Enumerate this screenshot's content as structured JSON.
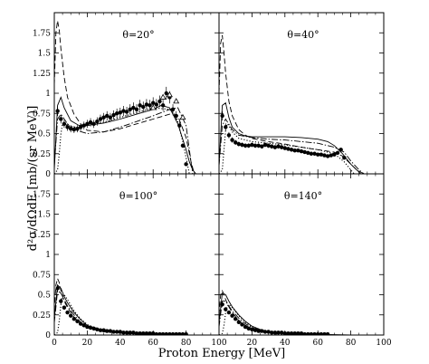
{
  "chart_data": {
    "type": "scatter",
    "layout": "2x2 panels sharing axes",
    "xlabel": "Proton Energy [MeV]",
    "ylabel": "d²σ/dΩdE [mb/(sr MeV)]",
    "xlim": [
      0,
      100
    ],
    "ylim": [
      0,
      2.0
    ],
    "x_ticks": [
      0,
      20,
      40,
      60,
      80,
      100
    ],
    "x_tick_labels": [
      "0",
      "20",
      "40",
      "60",
      "80",
      "100"
    ],
    "y_ticks": [
      0,
      0.25,
      0.5,
      0.75,
      1,
      1.25,
      1.5,
      1.75
    ],
    "y_tick_labels": [
      "0",
      "0.25",
      "0.5",
      "0.75",
      "1",
      "1.25",
      "1.5",
      "1.75"
    ],
    "grid": false,
    "panels": [
      {
        "label": "θ=20°",
        "data_points": {
          "x": [
            2,
            4,
            6,
            8,
            10,
            12,
            14,
            16,
            18,
            20,
            22,
            24,
            26,
            28,
            30,
            32,
            34,
            36,
            38,
            40,
            42,
            44,
            46,
            48,
            50,
            52,
            54,
            56,
            58,
            60,
            62,
            64,
            66,
            68,
            70,
            72,
            74,
            76,
            78,
            80
          ],
          "y": [
            0.78,
            0.68,
            0.62,
            0.58,
            0.56,
            0.55,
            0.56,
            0.58,
            0.6,
            0.62,
            0.64,
            0.62,
            0.65,
            0.68,
            0.7,
            0.72,
            0.7,
            0.73,
            0.75,
            0.76,
            0.78,
            0.77,
            0.8,
            0.82,
            0.8,
            0.85,
            0.83,
            0.86,
            0.85,
            0.88,
            0.86,
            0.9,
            0.85,
            1.0,
            0.95,
            0.8,
            0.72,
            0.6,
            0.35,
            0.12
          ]
        },
        "open_points": {
          "x": [
            60,
            66,
            70,
            74,
            78
          ],
          "y": [
            0.82,
            0.95,
            0.98,
            0.9,
            0.7
          ]
        },
        "lines": [
          {
            "style": "solid",
            "x": [
              0,
              2,
              4,
              6,
              10,
              15,
              20,
              30,
              40,
              50,
              60,
              65,
              70,
              75,
              80,
              82,
              84,
              86
            ],
            "y": [
              0.05,
              0.85,
              0.95,
              0.82,
              0.66,
              0.6,
              0.6,
              0.63,
              0.68,
              0.74,
              0.8,
              0.85,
              0.82,
              0.62,
              0.3,
              0.15,
              0.05,
              0
            ]
          },
          {
            "style": "dashed",
            "x": [
              0,
              1,
              2,
              3,
              4,
              6,
              8,
              12,
              16,
              20,
              30,
              40,
              50,
              60,
              70,
              75,
              80,
              83,
              85
            ],
            "y": [
              1.1,
              1.75,
              1.9,
              1.78,
              1.55,
              1.2,
              0.95,
              0.74,
              0.62,
              0.54,
              0.52,
              0.56,
              0.62,
              0.68,
              0.74,
              0.72,
              0.45,
              0.15,
              0
            ]
          },
          {
            "style": "dashdot",
            "x": [
              0,
              2,
              4,
              8,
              12,
              20,
              30,
              40,
              50,
              60,
              70,
              75,
              80,
              82,
              84
            ],
            "y": [
              0.1,
              0.68,
              0.74,
              0.62,
              0.55,
              0.5,
              0.52,
              0.58,
              0.65,
              0.72,
              0.8,
              0.82,
              0.6,
              0.3,
              0
            ]
          },
          {
            "style": "dotted",
            "x": [
              0,
              2,
              3,
              4,
              5,
              6,
              8,
              12,
              16,
              20,
              30,
              40,
              50,
              60,
              70,
              74,
              78,
              80,
              82
            ],
            "y": [
              0,
              0.05,
              0.25,
              0.5,
              0.62,
              0.62,
              0.6,
              0.58,
              0.58,
              0.6,
              0.64,
              0.7,
              0.76,
              0.82,
              0.8,
              0.72,
              0.4,
              0.2,
              0
            ]
          }
        ]
      },
      {
        "label": "θ=40°",
        "data_points": {
          "x": [
            2,
            4,
            6,
            8,
            10,
            12,
            14,
            16,
            18,
            20,
            22,
            24,
            26,
            28,
            30,
            32,
            34,
            36,
            38,
            40,
            42,
            44,
            46,
            48,
            50,
            52,
            54,
            56,
            58,
            60,
            62,
            64,
            66,
            68,
            70,
            72,
            74,
            76
          ],
          "y": [
            0.72,
            0.58,
            0.48,
            0.42,
            0.39,
            0.37,
            0.36,
            0.35,
            0.35,
            0.36,
            0.35,
            0.35,
            0.34,
            0.36,
            0.35,
            0.34,
            0.33,
            0.34,
            0.33,
            0.32,
            0.31,
            0.3,
            0.29,
            0.29,
            0.28,
            0.27,
            0.26,
            0.25,
            0.25,
            0.24,
            0.24,
            0.23,
            0.22,
            0.23,
            0.24,
            0.26,
            0.3,
            0.2
          ]
        },
        "open_points": {
          "x": [],
          "y": []
        },
        "lines": [
          {
            "style": "solid",
            "x": [
              0,
              2,
              4,
              6,
              8,
              12,
              16,
              20,
              30,
              40,
              50,
              60,
              66,
              70,
              75,
              80,
              84,
              88
            ],
            "y": [
              0.1,
              0.85,
              0.88,
              0.7,
              0.58,
              0.5,
              0.47,
              0.46,
              0.46,
              0.46,
              0.45,
              0.43,
              0.4,
              0.35,
              0.25,
              0.12,
              0.04,
              0
            ]
          },
          {
            "style": "dashed",
            "x": [
              0,
              1,
              2,
              3,
              4,
              6,
              8,
              12,
              16,
              20,
              30,
              40,
              50,
              60,
              70,
              75,
              80,
              84,
              86
            ],
            "y": [
              1.0,
              1.62,
              1.72,
              1.5,
              1.25,
              0.9,
              0.72,
              0.55,
              0.48,
              0.44,
              0.4,
              0.37,
              0.33,
              0.3,
              0.27,
              0.22,
              0.12,
              0.04,
              0
            ]
          },
          {
            "style": "dashdot",
            "x": [
              0,
              2,
              4,
              8,
              12,
              20,
              30,
              40,
              50,
              60,
              70,
              76,
              80,
              85,
              88
            ],
            "y": [
              0.1,
              0.6,
              0.68,
              0.55,
              0.48,
              0.45,
              0.43,
              0.42,
              0.4,
              0.38,
              0.33,
              0.27,
              0.16,
              0.05,
              0
            ]
          },
          {
            "style": "dotted",
            "x": [
              0,
              2,
              3,
              4,
              5,
              6,
              8,
              12,
              20,
              30,
              40,
              50,
              60,
              70,
              76,
              80,
              82
            ],
            "y": [
              0,
              0.05,
              0.3,
              0.55,
              0.62,
              0.6,
              0.52,
              0.44,
              0.4,
              0.38,
              0.36,
              0.33,
              0.3,
              0.25,
              0.15,
              0.05,
              0
            ]
          }
        ]
      },
      {
        "label": "θ=100°",
        "data_points": {
          "x": [
            2,
            4,
            6,
            8,
            10,
            12,
            14,
            16,
            18,
            20,
            22,
            24,
            26,
            28,
            30,
            32,
            34,
            36,
            38,
            40,
            42,
            44,
            46,
            48,
            50,
            52,
            54,
            56,
            58,
            60,
            62,
            64,
            66,
            68,
            70,
            72,
            74,
            76,
            78,
            80
          ],
          "y": [
            0.58,
            0.42,
            0.34,
            0.28,
            0.24,
            0.2,
            0.17,
            0.14,
            0.12,
            0.1,
            0.09,
            0.08,
            0.07,
            0.06,
            0.06,
            0.05,
            0.05,
            0.04,
            0.04,
            0.04,
            0.03,
            0.03,
            0.03,
            0.03,
            0.02,
            0.02,
            0.02,
            0.02,
            0.02,
            0.02,
            0.01,
            0.01,
            0.01,
            0.01,
            0.01,
            0.01,
            0.01,
            0.01,
            0.01,
            0.01
          ]
        },
        "open_points": {
          "x": [],
          "y": []
        },
        "lines": [
          {
            "style": "solid",
            "x": [
              0,
              2,
              4,
              6,
              8,
              12,
              16,
              20,
              26,
              30,
              40,
              50,
              60,
              70,
              80
            ],
            "y": [
              0.2,
              0.62,
              0.58,
              0.48,
              0.4,
              0.28,
              0.19,
              0.12,
              0.07,
              0.05,
              0.03,
              0.02,
              0.01,
              0.005,
              0
            ]
          },
          {
            "style": "dashed",
            "x": [
              0,
              1,
              2,
              3,
              4,
              6,
              8,
              12,
              16,
              20,
              26,
              30,
              40,
              50,
              60,
              70,
              80
            ],
            "y": [
              0.3,
              0.62,
              0.7,
              0.65,
              0.55,
              0.42,
              0.34,
              0.22,
              0.14,
              0.1,
              0.06,
              0.04,
              0.025,
              0.015,
              0.01,
              0.005,
              0
            ]
          },
          {
            "style": "dashdot",
            "x": [
              0,
              2,
              4,
              6,
              8,
              12,
              16,
              20,
              30,
              40,
              50,
              60,
              80
            ],
            "y": [
              0.15,
              0.55,
              0.52,
              0.44,
              0.36,
              0.25,
              0.16,
              0.1,
              0.045,
              0.025,
              0.015,
              0.01,
              0
            ]
          },
          {
            "style": "dotted",
            "x": [
              0,
              2,
              3,
              4,
              5,
              6,
              8,
              12,
              16,
              20,
              30,
              40,
              60,
              80
            ],
            "y": [
              0,
              0.03,
              0.18,
              0.38,
              0.48,
              0.5,
              0.44,
              0.3,
              0.2,
              0.13,
              0.05,
              0.025,
              0.01,
              0
            ]
          }
        ]
      },
      {
        "label": "θ=140°",
        "data_points": {
          "x": [
            2,
            4,
            6,
            8,
            10,
            12,
            14,
            16,
            18,
            20,
            22,
            24,
            26,
            28,
            30,
            32,
            34,
            36,
            38,
            40,
            42,
            44,
            46,
            48,
            50,
            52,
            54,
            56,
            58,
            60,
            62,
            64,
            66
          ],
          "y": [
            0.38,
            0.32,
            0.28,
            0.24,
            0.2,
            0.16,
            0.13,
            0.1,
            0.08,
            0.07,
            0.06,
            0.05,
            0.05,
            0.04,
            0.04,
            0.03,
            0.03,
            0.03,
            0.03,
            0.02,
            0.02,
            0.02,
            0.02,
            0.02,
            0.02,
            0.01,
            0.01,
            0.01,
            0.01,
            0.01,
            0.01,
            0.01,
            0.01
          ]
        },
        "open_points": {
          "x": [],
          "y": []
        },
        "lines": [
          {
            "style": "solid",
            "x": [
              0,
              2,
              4,
              6,
              8,
              12,
              16,
              20,
              26,
              30,
              40,
              50,
              60,
              70,
              80
            ],
            "y": [
              0.15,
              0.52,
              0.5,
              0.42,
              0.35,
              0.25,
              0.17,
              0.11,
              0.06,
              0.04,
              0.02,
              0.012,
              0.008,
              0.004,
              0
            ]
          },
          {
            "style": "dashed",
            "x": [
              0,
              1,
              2,
              3,
              4,
              6,
              8,
              12,
              16,
              20,
              26,
              30,
              40,
              50,
              60,
              70
            ],
            "y": [
              0.25,
              0.5,
              0.55,
              0.5,
              0.44,
              0.35,
              0.28,
              0.18,
              0.12,
              0.08,
              0.05,
              0.035,
              0.02,
              0.012,
              0.008,
              0
            ]
          },
          {
            "style": "dashdot",
            "x": [
              0,
              2,
              4,
              6,
              8,
              12,
              16,
              20,
              30,
              40,
              50,
              60,
              70
            ],
            "y": [
              0.1,
              0.42,
              0.42,
              0.36,
              0.3,
              0.21,
              0.14,
              0.09,
              0.04,
              0.02,
              0.012,
              0.008,
              0
            ]
          },
          {
            "style": "dotted",
            "x": [
              0,
              2,
              3,
              4,
              5,
              6,
              8,
              12,
              16,
              20,
              30,
              40,
              60
            ],
            "y": [
              0,
              0.02,
              0.12,
              0.28,
              0.36,
              0.38,
              0.34,
              0.24,
              0.16,
              0.1,
              0.04,
              0.02,
              0
            ]
          }
        ]
      }
    ]
  }
}
